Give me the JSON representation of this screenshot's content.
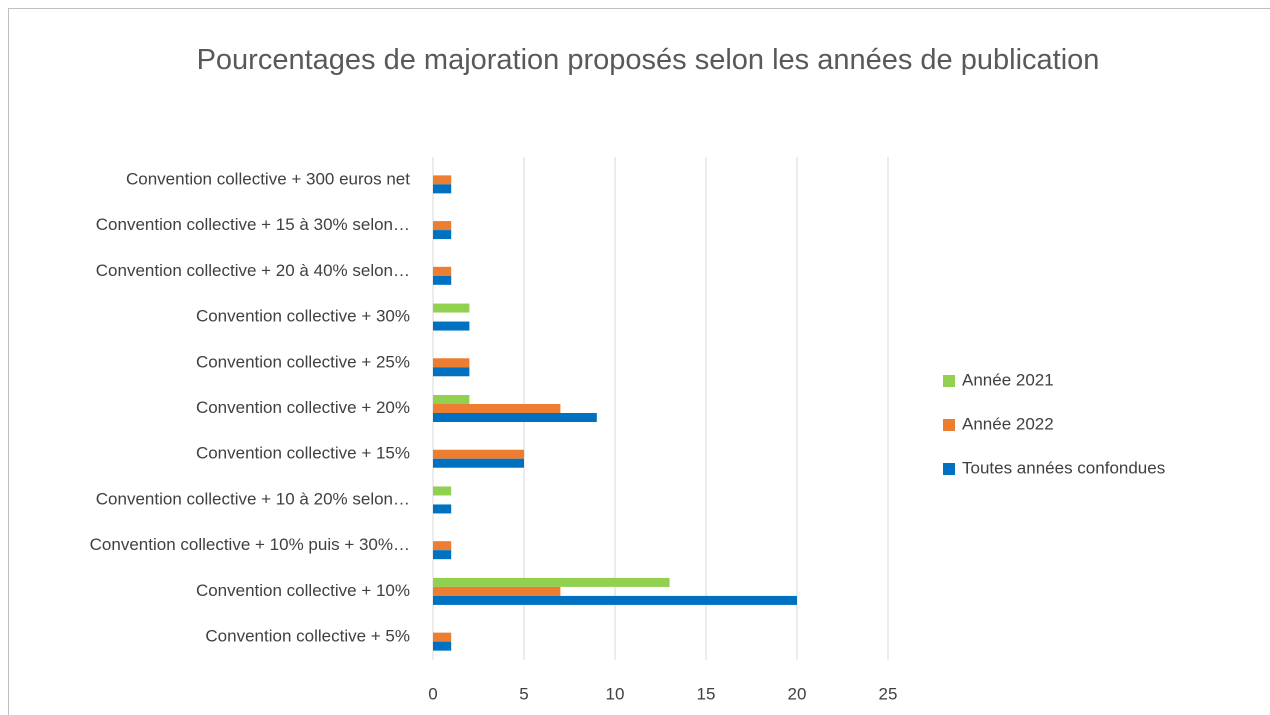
{
  "chart_data": {
    "type": "bar",
    "orientation": "horizontal",
    "title": "Pourcentages de majoration proposés selon les années de publication",
    "categories": [
      "Convention collective + 300 euros net",
      "Convention collective + 15 à 30% selon…",
      "Convention collective + 20 à 40% selon…",
      "Convention collective + 30%",
      "Convention collective + 25%",
      "Convention collective + 20%",
      "Convention collective + 15%",
      "Convention collective + 10 à 20% selon…",
      "Convention collective + 10% puis + 30%…",
      "Convention collective + 10%",
      "Convention collective + 5%"
    ],
    "series": [
      {
        "name": "Année 2021",
        "color": "#92d050",
        "values": [
          null,
          null,
          null,
          2,
          null,
          2,
          null,
          1,
          null,
          13,
          null
        ]
      },
      {
        "name": "Année 2022",
        "color": "#ed7d31",
        "values": [
          1,
          1,
          1,
          null,
          2,
          7,
          5,
          null,
          1,
          7,
          1
        ]
      },
      {
        "name": "Toutes années confondues",
        "color": "#0070c0",
        "values": [
          1,
          1,
          1,
          2,
          2,
          9,
          5,
          1,
          1,
          20,
          1
        ]
      }
    ],
    "xlim": [
      0,
      25
    ],
    "xticks": [
      0,
      5,
      10,
      15,
      20,
      25
    ],
    "grid": true,
    "legend": "right"
  }
}
